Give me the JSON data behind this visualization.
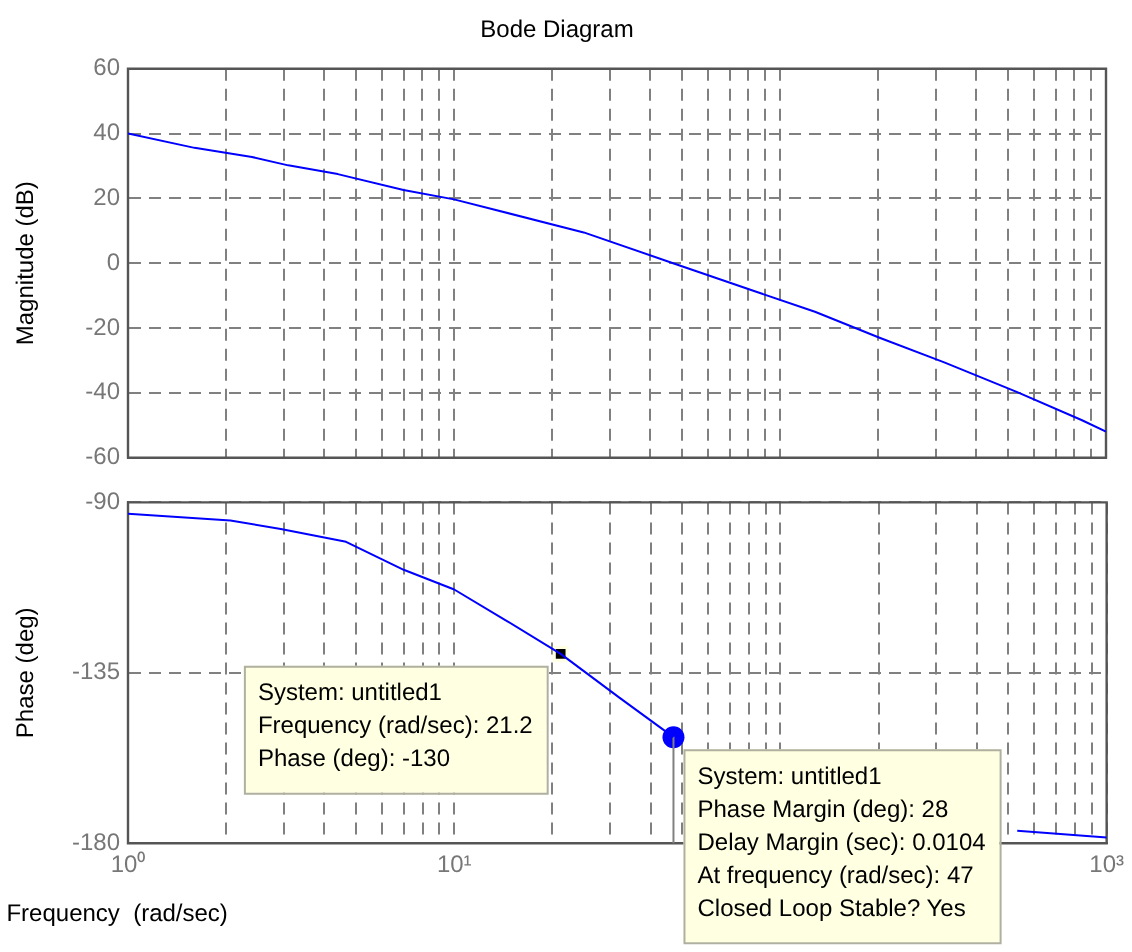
{
  "chart_data": [
    {
      "type": "line",
      "title": "Bode Diagram",
      "ylabel": "Magnitude (dB)",
      "log": "x",
      "grid": true,
      "legend": false,
      "tick_labels": "y",
      "xlim": [
        1,
        1000
      ],
      "ylim": [
        -60,
        60
      ],
      "yticks": [
        -60,
        -40,
        -20,
        0,
        20,
        40,
        60
      ],
      "xticks": [
        {
          "value": 1,
          "label": null
        },
        {
          "value": 2,
          "label": null
        },
        {
          "value": 3,
          "label": null
        },
        {
          "value": 4,
          "label": null
        },
        {
          "value": 5,
          "label": null
        },
        {
          "value": 6,
          "label": null
        },
        {
          "value": 7,
          "label": null
        },
        {
          "value": 8,
          "label": null
        },
        {
          "value": 9,
          "label": null
        },
        {
          "value": 10,
          "label": null
        },
        {
          "value": 20,
          "label": null
        },
        {
          "value": 30,
          "label": null
        },
        {
          "value": 40,
          "label": null
        },
        {
          "value": 50,
          "label": null
        },
        {
          "value": 60,
          "label": null
        },
        {
          "value": 70,
          "label": null
        },
        {
          "value": 80,
          "label": null
        },
        {
          "value": 90,
          "label": null
        },
        {
          "value": 100,
          "label": null
        },
        {
          "value": 200,
          "label": null
        },
        {
          "value": 300,
          "label": null
        },
        {
          "value": 400,
          "label": null
        },
        {
          "value": 500,
          "label": null
        },
        {
          "value": 600,
          "label": null
        },
        {
          "value": 700,
          "label": null
        },
        {
          "value": 800,
          "label": null
        },
        {
          "value": 900,
          "label": null
        },
        {
          "value": 1000,
          "label": null
        }
      ],
      "series": [
        {
          "type": "line",
          "color": "#0000ff",
          "marker": "none",
          "x": [
            1,
            1.6,
            2.4,
            3.1,
            4.4,
            7,
            10,
            25,
            47,
            85,
            128,
            202,
            319,
            532,
            841,
            1000
          ],
          "values": [
            40,
            35.6,
            32.8,
            30.2,
            27.5,
            22.6,
            19.7,
            9.5,
            0,
            -8.9,
            -15,
            -23,
            -30.6,
            -39.7,
            -48.4,
            -52
          ]
        }
      ]
    },
    {
      "type": "line",
      "xlabel": "Frequency  (rad/sec)",
      "ylabel": "Phase (deg)",
      "log": "x",
      "grid": true,
      "legend": false,
      "xlim": [
        1,
        1000
      ],
      "ylim": [
        -180,
        -90
      ],
      "yticks": [
        -180,
        -135,
        -90
      ],
      "xticks": [
        {
          "value": 1,
          "label": "10⁰"
        },
        {
          "value": 2,
          "label": null
        },
        {
          "value": 3,
          "label": null
        },
        {
          "value": 4,
          "label": null
        },
        {
          "value": 5,
          "label": null
        },
        {
          "value": 6,
          "label": null
        },
        {
          "value": 7,
          "label": null
        },
        {
          "value": 8,
          "label": null
        },
        {
          "value": 9,
          "label": null
        },
        {
          "value": 10,
          "label": "10¹"
        },
        {
          "value": 20,
          "label": null
        },
        {
          "value": 30,
          "label": null
        },
        {
          "value": 40,
          "label": null
        },
        {
          "value": 50,
          "label": null
        },
        {
          "value": 60,
          "label": null
        },
        {
          "value": 70,
          "label": null
        },
        {
          "value": 80,
          "label": null
        },
        {
          "value": 90,
          "label": null
        },
        {
          "value": 100,
          "label": null
        },
        {
          "value": 200,
          "label": null
        },
        {
          "value": 300,
          "label": null
        },
        {
          "value": 400,
          "label": null
        },
        {
          "value": 500,
          "label": null
        },
        {
          "value": 600,
          "label": null
        },
        {
          "value": 700,
          "label": null
        },
        {
          "value": 800,
          "label": null
        },
        {
          "value": 900,
          "label": null
        },
        {
          "value": 1000,
          "label": "10³"
        }
      ],
      "series": [
        {
          "type": "line",
          "color": "#0000ff",
          "marker": "none",
          "x": [
            1,
            2.06,
            2.94,
            4.66,
            7,
            10,
            14.3,
            21.2,
            32,
            47,
            66,
            200,
            532,
            1000
          ],
          "values": [
            -93,
            -94.8,
            -97,
            -100.4,
            -107.8,
            -113,
            -121,
            -130,
            -141.5,
            -152,
            null,
            null,
            -176.7,
            -178.5
          ]
        },
        {
          "type": "line",
          "color": "#808080",
          "marker": "none",
          "x": [
            47,
            47
          ],
          "values": [
            -152,
            -180
          ]
        },
        {
          "type": "scatter",
          "color": "#000000",
          "marker": "square",
          "x": [
            21.2
          ],
          "values": [
            -130
          ]
        },
        {
          "type": "scatter",
          "color": "#0000ff",
          "marker": "circle",
          "x": [
            47
          ],
          "values": [
            -152
          ]
        }
      ],
      "annotations": [
        {
          "text": "System: untitled1\nFrequency (rad/sec): 21.2\nPhase (deg): -130",
          "x": 21.2,
          "y": -130
        },
        {
          "text": "System: untitled1\nPhase Margin (deg): 28\nDelay Margin (sec): 0.0104\nAt frequency (rad/sec): 47\nClosed Loop Stable? Yes",
          "x": 47,
          "y": -152
        }
      ]
    }
  ]
}
